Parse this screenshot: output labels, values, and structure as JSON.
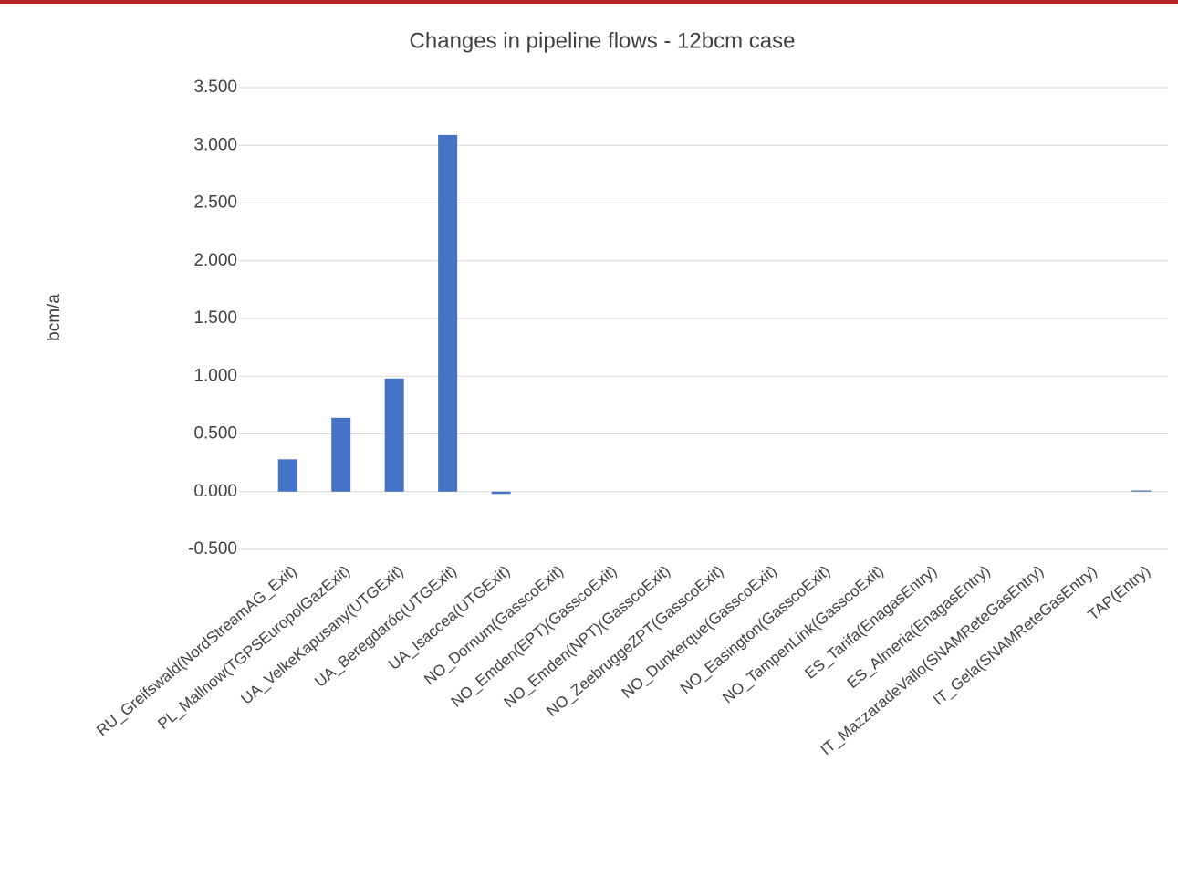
{
  "chart_data": {
    "type": "bar",
    "title": "Changes in pipeline flows - 12bcm case",
    "y_label": "bcm/a",
    "categories": [
      "RU_Greifswald(NordStreamAG_Exit)",
      "PL_Mallnow(TGPSEuropolGazExit)",
      "UA_VelkeKapusany(UTGExit)",
      "UA_Beregdaróc(UTGExit)",
      "UA_Isaccea(UTGExit)",
      "NO_Dornum(GasscoExit)",
      "NO_Emden(EPT)(GasscoExit)",
      "NO_Emden(NPT)(GasscoExit)",
      "NO_ZeebruggeZPT(GasscoExit)",
      "NO_Dunkerque(GasscoExit)",
      "NO_Easington(GasscoExit)",
      "NO_TampenLink(GasscoExit)",
      "ES_Tarifa(EnagasEntry)",
      "ES_Almeria(EnagasEntry)",
      "IT_MazzaradeVallo(SNAMReteGasEntry)",
      "IT_Gela(SNAMReteGasEntry)",
      "TAP(Entry)"
    ],
    "values": [
      0.28,
      0.64,
      0.98,
      3.09,
      -0.02,
      0,
      0,
      0,
      0,
      0,
      0,
      0,
      0,
      0,
      0,
      0,
      0.01
    ],
    "color": "#4472c4",
    "ylim": [
      -0.5,
      3.5
    ],
    "yticks": [
      {
        "value": 3.5,
        "label": "3.500"
      },
      {
        "value": 3,
        "label": "3.000"
      },
      {
        "value": 2.5,
        "label": "2.500"
      },
      {
        "value": 2,
        "label": "2.000"
      },
      {
        "value": 1.5,
        "label": "1.500"
      },
      {
        "value": 1,
        "label": "1.000"
      },
      {
        "value": 0.5,
        "label": "0.500"
      },
      {
        "value": 0,
        "label": "0.000"
      },
      {
        "value": -0.5,
        "label": "-0.500"
      }
    ],
    "grid": true
  }
}
